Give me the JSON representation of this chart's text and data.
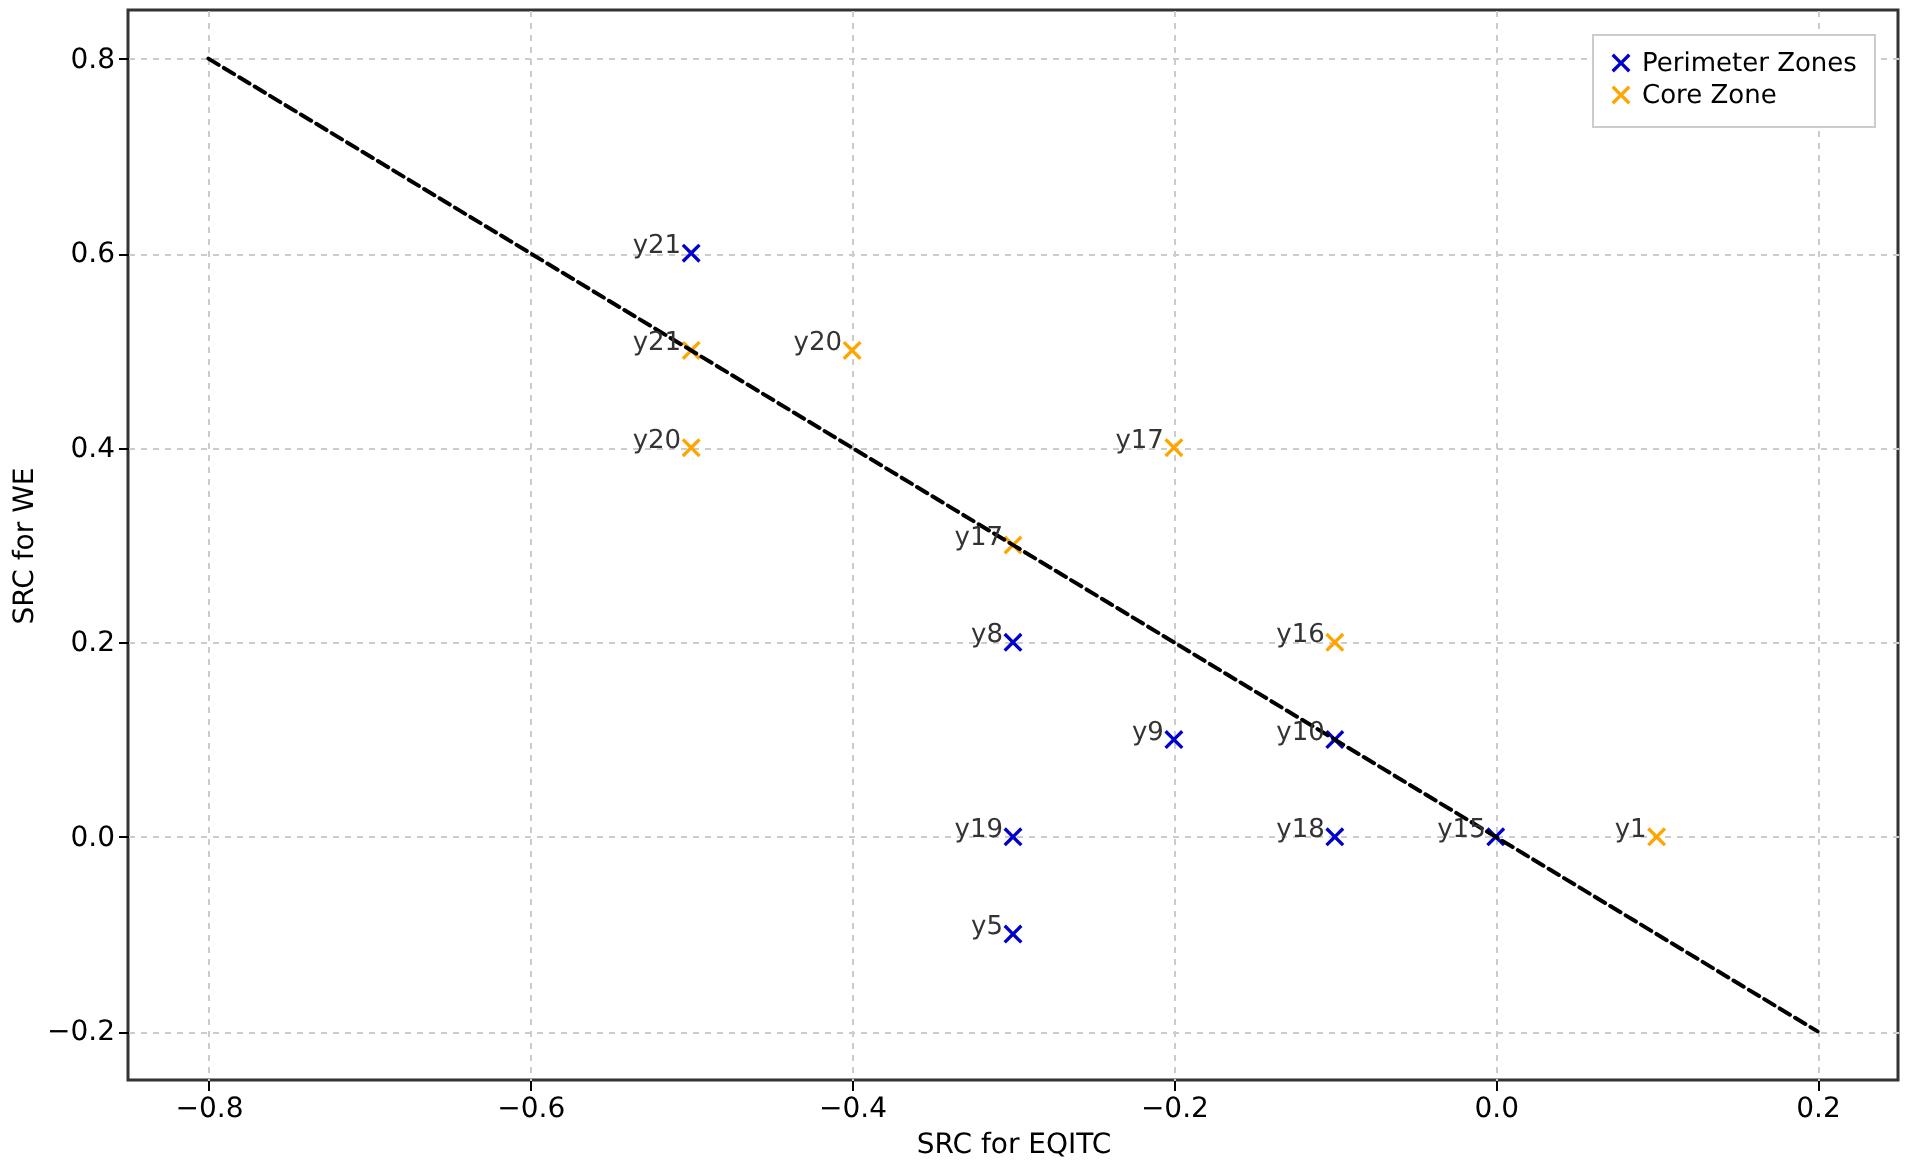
{
  "chart_data": {
    "type": "scatter",
    "xlabel": "SRC for EQITC",
    "ylabel": "SRC for WE",
    "xlim": [
      -0.85,
      0.25
    ],
    "ylim": [
      -0.25,
      0.85
    ],
    "xticks": [
      {
        "value": -0.8,
        "label": "−0.8"
      },
      {
        "value": -0.6,
        "label": "−0.6"
      },
      {
        "value": -0.4,
        "label": "−0.4"
      },
      {
        "value": -0.2,
        "label": "−0.2"
      },
      {
        "value": 0.0,
        "label": "0.0"
      },
      {
        "value": 0.2,
        "label": "0.2"
      }
    ],
    "yticks": [
      {
        "value": -0.2,
        "label": "−0.2"
      },
      {
        "value": 0.0,
        "label": "0.0"
      },
      {
        "value": 0.2,
        "label": "0.2"
      },
      {
        "value": 0.4,
        "label": "0.4"
      },
      {
        "value": 0.6,
        "label": "0.6"
      },
      {
        "value": 0.8,
        "label": "0.8"
      }
    ],
    "grid": true,
    "legend": "top right",
    "marker": "cross",
    "series": [
      {
        "name": "Perimeter Zones",
        "color": "#0000cc",
        "x": [
          -0.5,
          -0.3,
          -0.2,
          -0.1,
          -0.3,
          -0.1,
          0.0,
          -0.3
        ],
        "values": [
          0.6,
          0.2,
          0.1,
          0.1,
          0.0,
          0.0,
          0.0,
          -0.1
        ]
      },
      {
        "name": "Core Zone",
        "color": "#ffa500",
        "x": [
          -0.5,
          -0.5,
          -0.4,
          -0.2,
          -0.3,
          -0.1,
          0.1
        ],
        "values": [
          0.5,
          0.4,
          0.5,
          0.4,
          0.3,
          0.2,
          0.0
        ]
      },
      {
        "color": "#000000",
        "type": "line",
        "line_style": "dashed",
        "marker": "none",
        "x": [
          -0.8,
          0.2
        ],
        "values": [
          0.8,
          -0.2
        ]
      }
    ],
    "annotations": [
      {
        "text": "y21",
        "x": -0.5,
        "y": 0.6
      },
      {
        "text": "y8",
        "x": -0.3,
        "y": 0.2
      },
      {
        "text": "y9",
        "x": -0.2,
        "y": 0.1
      },
      {
        "text": "y10",
        "x": -0.1,
        "y": 0.1
      },
      {
        "text": "y19",
        "x": -0.3,
        "y": 0.0
      },
      {
        "text": "y18",
        "x": -0.1,
        "y": 0.0
      },
      {
        "text": "y15",
        "x": 0.0,
        "y": 0.0
      },
      {
        "text": "y5",
        "x": -0.3,
        "y": -0.1
      },
      {
        "text": "y21",
        "x": -0.5,
        "y": 0.5
      },
      {
        "text": "y20",
        "x": -0.5,
        "y": 0.4
      },
      {
        "text": "y20",
        "x": -0.4,
        "y": 0.5
      },
      {
        "text": "y17",
        "x": -0.2,
        "y": 0.4
      },
      {
        "text": "y17",
        "x": -0.3,
        "y": 0.3
      },
      {
        "text": "y16",
        "x": -0.1,
        "y": 0.2
      },
      {
        "text": "y1",
        "x": 0.1,
        "y": 0.0
      }
    ]
  }
}
